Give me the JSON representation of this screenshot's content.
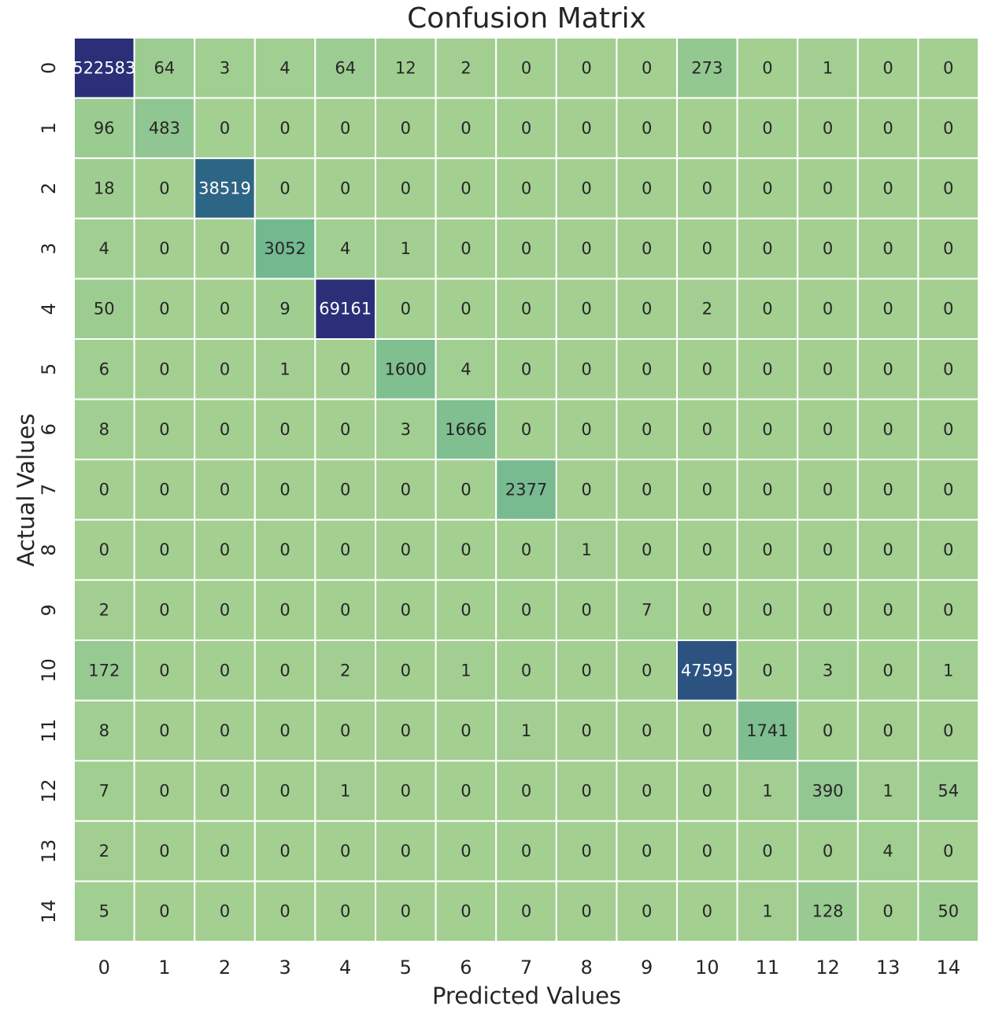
{
  "chart_data": {
    "type": "heatmap",
    "title": "Confusion Matrix",
    "xlabel": "Predicted Values",
    "ylabel": "Actual Values",
    "x_categories": [
      "0",
      "1",
      "2",
      "3",
      "4",
      "5",
      "6",
      "7",
      "8",
      "9",
      "10",
      "11",
      "12",
      "13",
      "14"
    ],
    "y_categories": [
      "0",
      "1",
      "2",
      "3",
      "4",
      "5",
      "6",
      "7",
      "8",
      "9",
      "10",
      "11",
      "12",
      "13",
      "14"
    ],
    "values": [
      [
        522583,
        64,
        3,
        4,
        64,
        12,
        2,
        0,
        0,
        0,
        273,
        0,
        1,
        0,
        0
      ],
      [
        96,
        483,
        0,
        0,
        0,
        0,
        0,
        0,
        0,
        0,
        0,
        0,
        0,
        0,
        0
      ],
      [
        18,
        0,
        38519,
        0,
        0,
        0,
        0,
        0,
        0,
        0,
        0,
        0,
        0,
        0,
        0
      ],
      [
        4,
        0,
        0,
        3052,
        4,
        1,
        0,
        0,
        0,
        0,
        0,
        0,
        0,
        0,
        0
      ],
      [
        50,
        0,
        0,
        9,
        69161,
        0,
        0,
        0,
        0,
        0,
        2,
        0,
        0,
        0,
        0
      ],
      [
        6,
        0,
        0,
        1,
        0,
        1600,
        4,
        0,
        0,
        0,
        0,
        0,
        0,
        0,
        0
      ],
      [
        8,
        0,
        0,
        0,
        0,
        3,
        1666,
        0,
        0,
        0,
        0,
        0,
        0,
        0,
        0
      ],
      [
        0,
        0,
        0,
        0,
        0,
        0,
        0,
        2377,
        0,
        0,
        0,
        0,
        0,
        0,
        0
      ],
      [
        0,
        0,
        0,
        0,
        0,
        0,
        0,
        0,
        1,
        0,
        0,
        0,
        0,
        0,
        0
      ],
      [
        2,
        0,
        0,
        0,
        0,
        0,
        0,
        0,
        0,
        7,
        0,
        0,
        0,
        0,
        0
      ],
      [
        172,
        0,
        0,
        0,
        2,
        0,
        1,
        0,
        0,
        0,
        47595,
        0,
        3,
        0,
        1
      ],
      [
        8,
        0,
        0,
        0,
        0,
        0,
        0,
        1,
        0,
        0,
        0,
        1741,
        0,
        0,
        0
      ],
      [
        7,
        0,
        0,
        0,
        1,
        0,
        0,
        0,
        0,
        0,
        0,
        1,
        390,
        1,
        54
      ],
      [
        2,
        0,
        0,
        0,
        0,
        0,
        0,
        0,
        0,
        0,
        0,
        0,
        0,
        4,
        0
      ],
      [
        5,
        0,
        0,
        0,
        0,
        0,
        0,
        0,
        0,
        0,
        0,
        1,
        128,
        0,
        50
      ]
    ],
    "colorbar": false,
    "colormap": [
      "#a3cf91",
      "#2f9a8f",
      "#2a2f78"
    ],
    "grid_color": "#ffffff"
  }
}
